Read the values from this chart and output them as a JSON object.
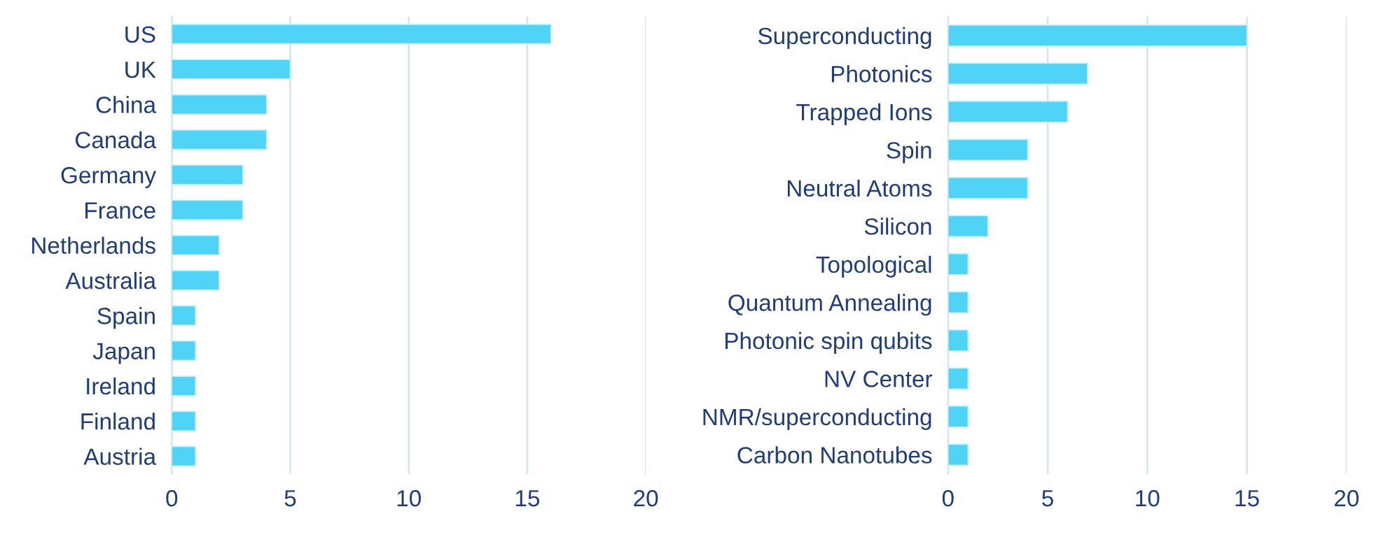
{
  "chart_data": [
    {
      "type": "bar",
      "orientation": "horizontal",
      "categories": [
        "US",
        "UK",
        "China",
        "Canada",
        "Germany",
        "France",
        "Netherlands",
        "Australia",
        "Spain",
        "Japan",
        "Ireland",
        "Finland",
        "Austria"
      ],
      "values": [
        16,
        5,
        4,
        4,
        3,
        3,
        2,
        2,
        1,
        1,
        1,
        1,
        1
      ],
      "color": "#4fd3f7",
      "xlim": [
        0,
        20
      ],
      "xticks": [
        0,
        5,
        10,
        15,
        20
      ],
      "grid": "x"
    },
    {
      "type": "bar",
      "orientation": "horizontal",
      "categories": [
        "Superconducting",
        "Photonics",
        "Trapped Ions",
        "Spin",
        "Neutral Atoms",
        "Silicon",
        "Topological",
        "Quantum Annealing",
        "Photonic spin qubits",
        "NV Center",
        "NMR/superconducting",
        "Carbon Nanotubes"
      ],
      "values": [
        15,
        7,
        6,
        4,
        4,
        2,
        1,
        1,
        1,
        1,
        1,
        1
      ],
      "color": "#4fd3f7",
      "xlim": [
        0,
        20
      ],
      "xticks": [
        0,
        5,
        10,
        15,
        20
      ],
      "grid": "x"
    }
  ]
}
